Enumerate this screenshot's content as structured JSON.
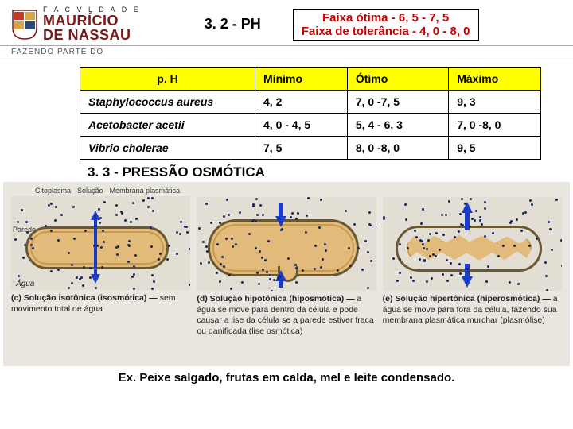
{
  "logo": {
    "topword": "F A C V L D A D E",
    "main1": "MAURÍCIO",
    "main2": "DE NASSAU",
    "subheader": "FAZENDO PARTE DO"
  },
  "section32": "3. 2 - PH",
  "faixa": {
    "line1": "Faixa ótima - 6, 5 - 7, 5",
    "line2": "Faixa de tolerância - 4, 0 - 8, 0"
  },
  "table": {
    "columns": [
      "p. H",
      "Mínimo",
      "Ótimo",
      "Máximo"
    ],
    "rows": [
      [
        "Staphylococcus aureus",
        "4, 2",
        "7, 0 -7, 5",
        "9, 3"
      ],
      [
        "Acetobacter acetii",
        "4, 0 - 4, 5",
        "5, 4 - 6, 3",
        "7, 0 -8, 0"
      ],
      [
        "Vibrio cholerae",
        "7, 5",
        "8, 0 -8, 0",
        "9, 5"
      ]
    ],
    "col_widths": [
      "38%",
      "20%",
      "22%",
      "20%"
    ],
    "header_bg": "#ffff00"
  },
  "section33": "3. 3 - PRESSÃO OSMÓTICA",
  "diagram": {
    "bg": "#e8e6df",
    "cell_fill": "#e2bb7a",
    "cell_border": "#6a5832",
    "arrow_color": "#1a3cc9",
    "dot_color": "#1a2a5a",
    "top_labels": [
      "Citoplasma",
      "Solução",
      "Membrana plasmática"
    ],
    "wall_label": "Parede celular",
    "agua": "Água",
    "panels": [
      {
        "caption_bold": "(c) Solução isotônica (isosmótica) —",
        "caption_rest": "sem movimento total de água"
      },
      {
        "caption_bold": "(d) Solução hipotônica (hiposmótica) —",
        "caption_rest": "a água se move para dentro da célula e pode causar a lise da célula se a parede estiver fraca ou danificada (lise osmótica)"
      },
      {
        "caption_bold": "(e) Solução hipertônica (hiperosmótica) —",
        "caption_rest": "a água se move para fora da célula, fazendo sua membrana plasmática murchar (plasmólise)"
      }
    ]
  },
  "footer": "Ex. Peixe salgado, frutas em calda, mel e leite condensado."
}
